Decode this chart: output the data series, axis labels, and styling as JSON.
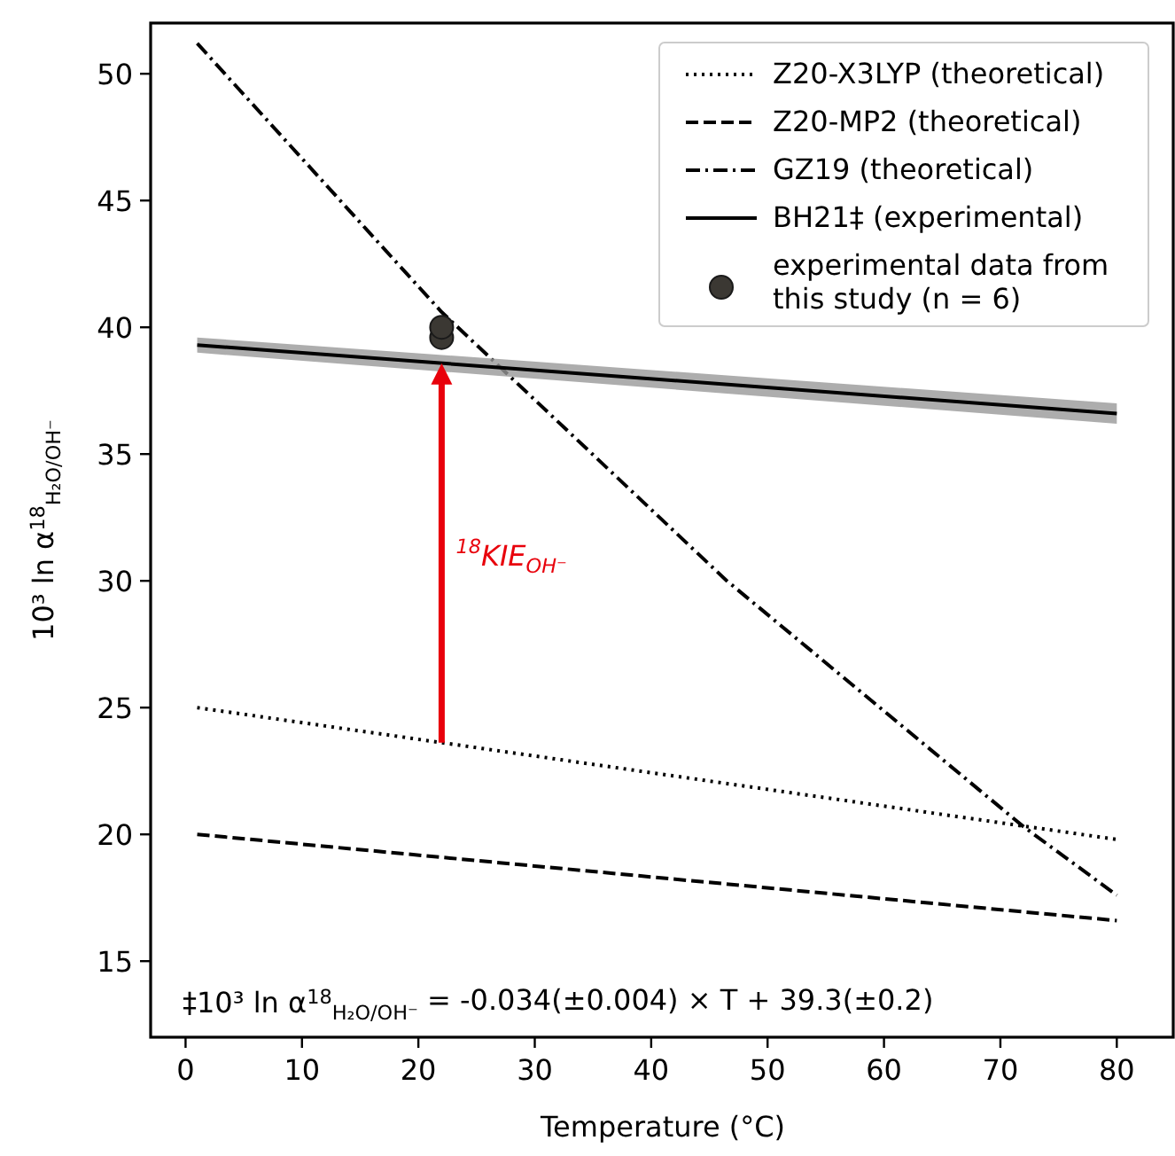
{
  "chart_data": {
    "type": "line",
    "xlabel": "Temperature (°C)",
    "ylabel": "10³ ln α$^{18}$$_{H₂O/OH⁻}$",
    "xlim": [
      -3,
      85
    ],
    "xticks": [
      0,
      10,
      20,
      30,
      40,
      50,
      60,
      70,
      80
    ],
    "ylim": [
      12,
      52
    ],
    "yticks": [
      15,
      20,
      25,
      30,
      35,
      40,
      45,
      50
    ],
    "grid": false,
    "legend": "top right",
    "series": [
      {
        "name": "Z20-X3LYP (theoretical)",
        "color": "#000000",
        "line_style": "dotted",
        "x": [
          1,
          80
        ],
        "values": [
          25.0,
          19.8
        ]
      },
      {
        "name": "Z20-MP2 (theoretical)",
        "color": "#000000",
        "line_style": "dashed",
        "x": [
          1,
          80
        ],
        "values": [
          20.0,
          16.6
        ]
      },
      {
        "name": "GZ19 (theoretical)",
        "color": "#000000",
        "line_style": "dashdot",
        "x": [
          1,
          22,
          46.5,
          72,
          80
        ],
        "values": [
          51.2,
          40.6,
          30.0,
          20.3,
          17.6
        ]
      },
      {
        "name": "BH21‡ (experimental)",
        "color": "#000000",
        "line_style": "solid",
        "x": [
          1,
          80
        ],
        "values": [
          39.3,
          36.6
        ],
        "lower": [
          39.0,
          36.2
        ],
        "upper": [
          39.6,
          37.0
        ]
      },
      {
        "name": "experimental data from this study (n = 6)",
        "type": "scatter",
        "marker": "circle",
        "color": "#3b3833",
        "x": [
          22,
          22
        ],
        "values": [
          39.6,
          40.0
        ]
      }
    ],
    "annotations": [
      "$^{18}$KIE$_{OH⁻}$",
      "‡10³ ln α$^{18}$$_{H₂O/OH⁻}$ = -0.034(±0.004) × T + 39.3(±0.2)"
    ]
  }
}
